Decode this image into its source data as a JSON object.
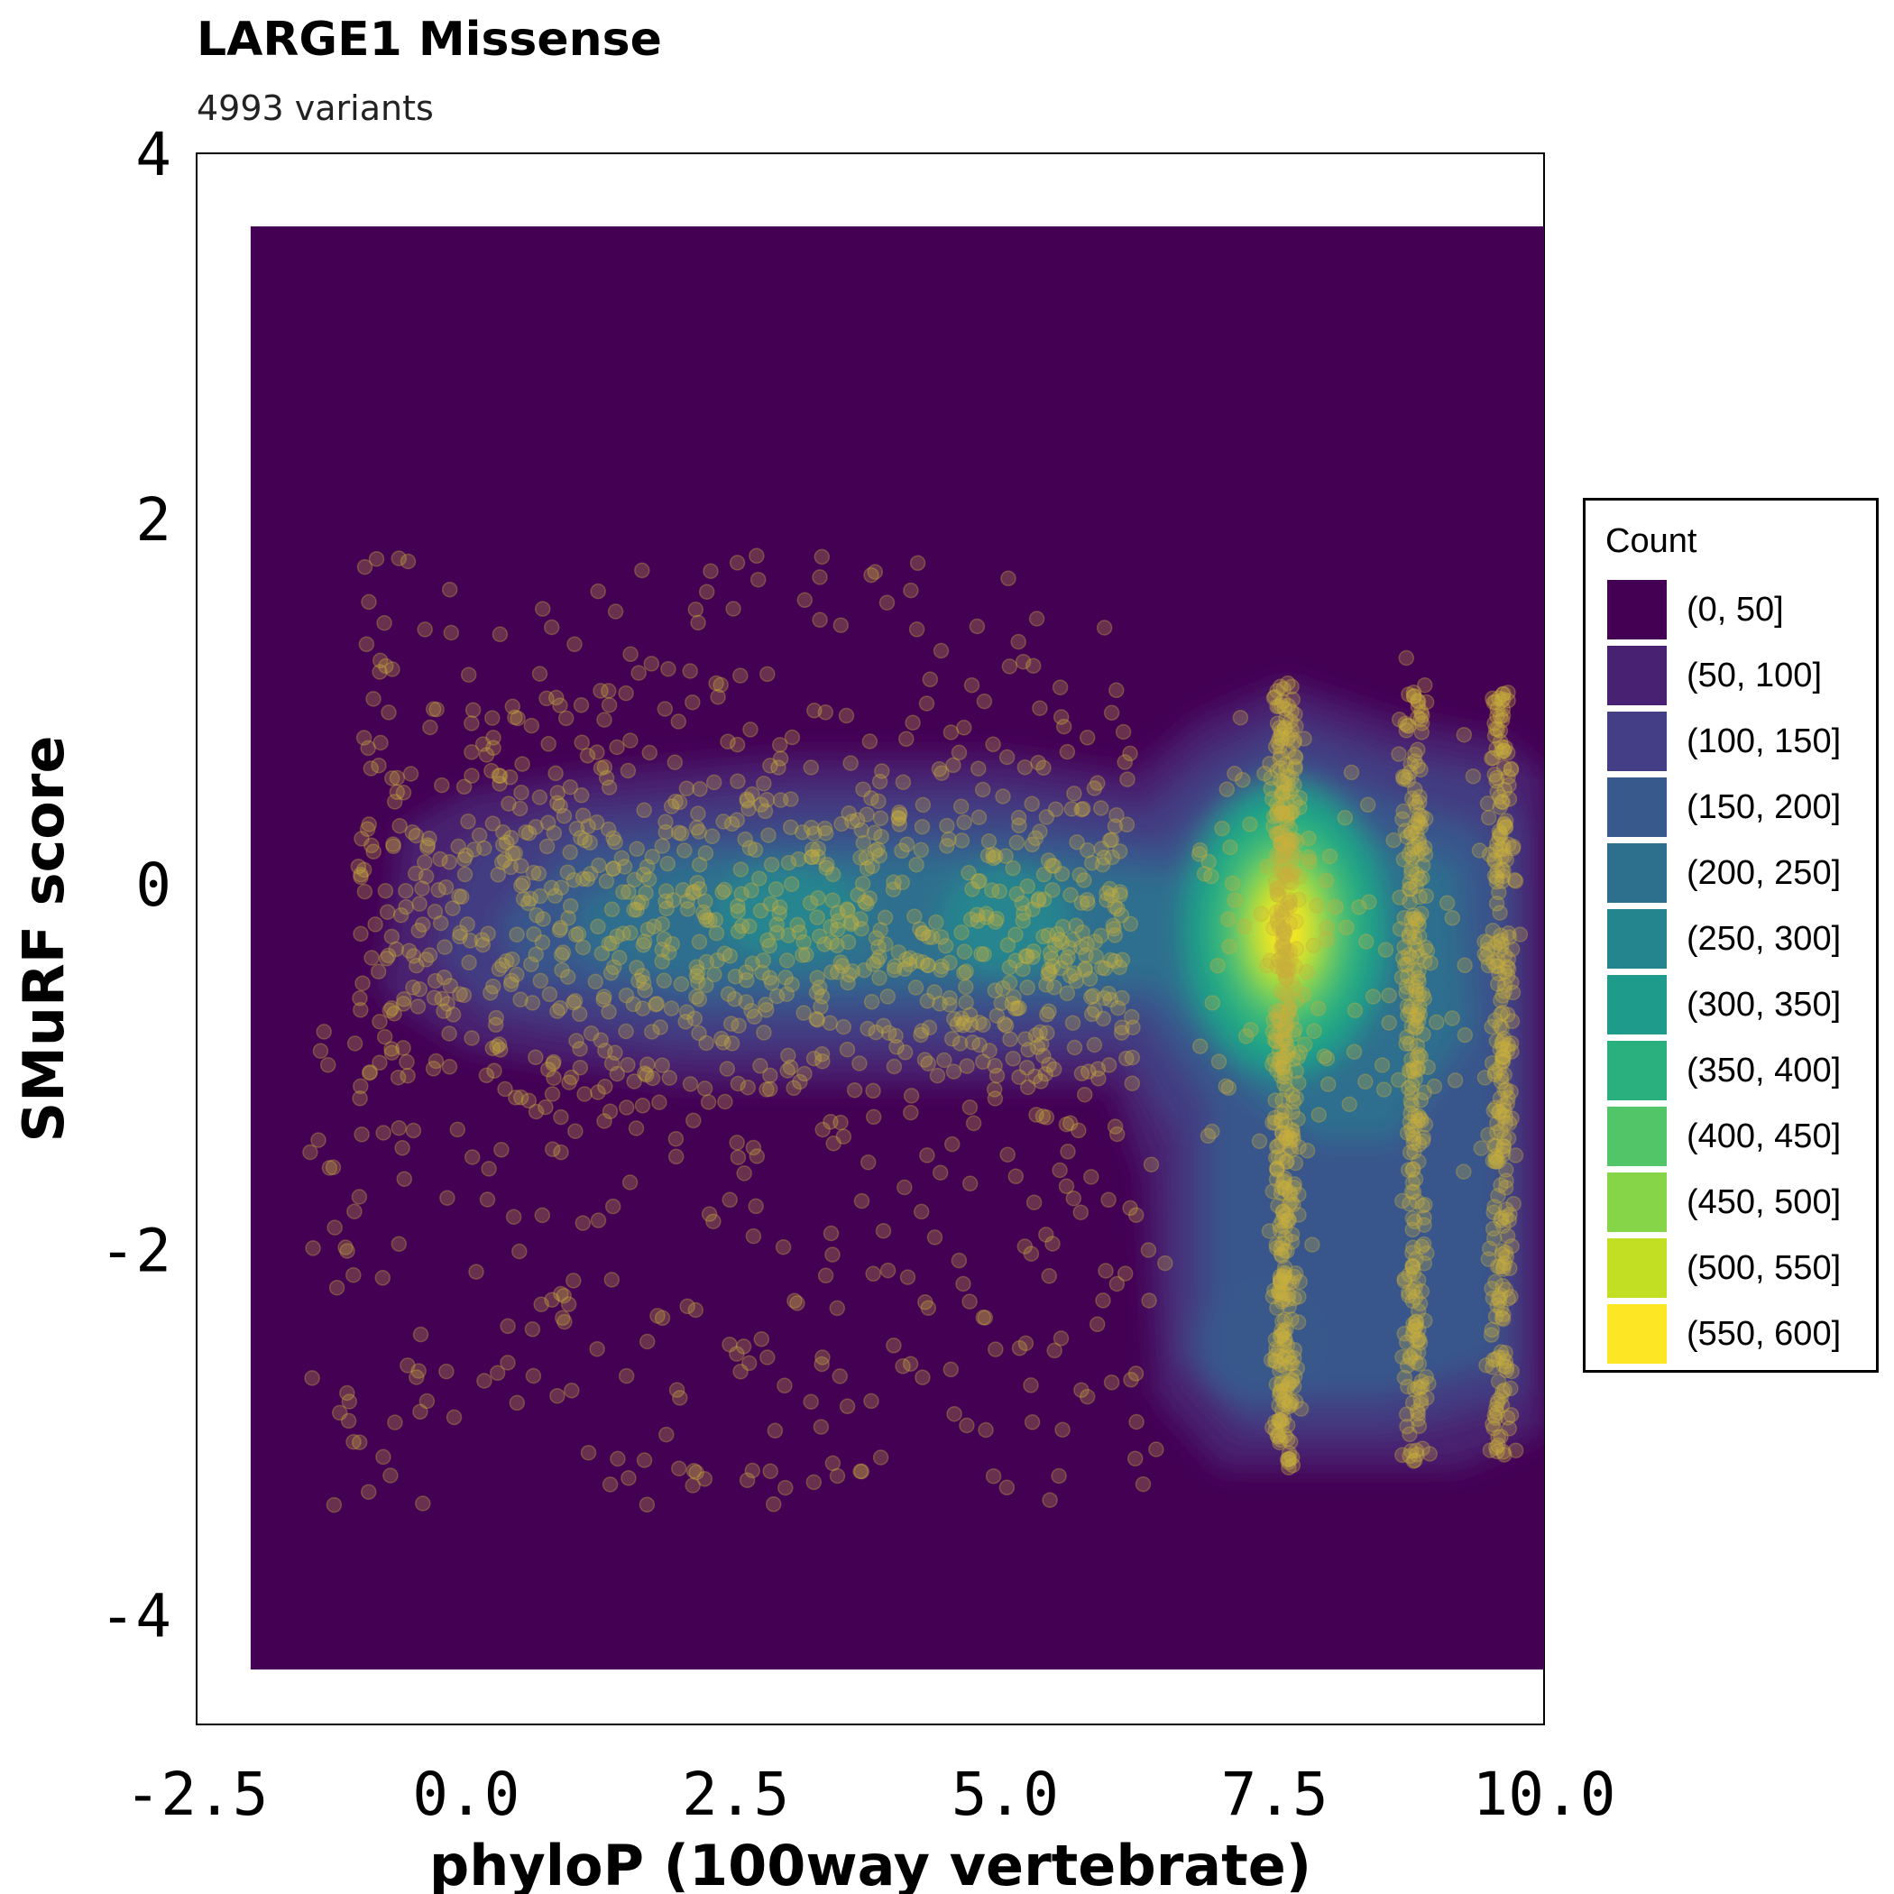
{
  "chart_data": {
    "type": "density-contour-scatter",
    "title": "LARGE1 Missense",
    "subtitle": "4993 variants",
    "xlabel": "phyloP (100way vertebrate)",
    "ylabel": "SMuRF score",
    "xlim": [
      -2.5,
      10.0
    ],
    "ylim": [
      -4.6,
      4.0
    ],
    "x_ticks": [
      -2.5,
      0.0,
      2.5,
      5.0,
      7.5,
      10.0
    ],
    "x_tick_labels": [
      "-2.5",
      "0.0",
      "2.5",
      "5.0",
      "7.5",
      "10.0"
    ],
    "y_ticks": [
      -4,
      -2,
      0,
      2,
      4
    ],
    "y_tick_labels": [
      "-4",
      "-2",
      "0",
      "2",
      "4"
    ],
    "grid": false,
    "density_extent": {
      "x": [
        -2.0,
        10.0
      ],
      "y": [
        -4.3,
        3.6
      ]
    },
    "density_peaks": [
      {
        "x": 7.6,
        "y": -0.3,
        "level": 600
      },
      {
        "x": 3.0,
        "y": -0.1,
        "level": 260
      },
      {
        "x": 1.5,
        "y": -0.15,
        "level": 230
      },
      {
        "x": 5.0,
        "y": -0.2,
        "level": 260
      },
      {
        "x": 8.9,
        "y": -0.3,
        "level": 300
      },
      {
        "x": 7.8,
        "y": -2.5,
        "level": 230
      }
    ],
    "point_columns": [
      7.6,
      8.8,
      9.6
    ],
    "legend": {
      "title": "Count",
      "position": "right",
      "items": [
        {
          "label": "(0, 50]",
          "color": "#440154"
        },
        {
          "label": "(50, 100]",
          "color": "#482173"
        },
        {
          "label": "(100, 150]",
          "color": "#433e85"
        },
        {
          "label": "(150, 200]",
          "color": "#38598c"
        },
        {
          "label": "(200, 250]",
          "color": "#2d708e"
        },
        {
          "label": "(250, 300]",
          "color": "#25858e"
        },
        {
          "label": "(300, 350]",
          "color": "#1e9b8a"
        },
        {
          "label": "(350, 400]",
          "color": "#2ab07f"
        },
        {
          "label": "(400, 450]",
          "color": "#52c569"
        },
        {
          "label": "(450, 500]",
          "color": "#86d549"
        },
        {
          "label": "(500, 550]",
          "color": "#c2df23"
        },
        {
          "label": "(550, 600]",
          "color": "#fde725"
        }
      ]
    },
    "point_color": "#c8b03c"
  }
}
